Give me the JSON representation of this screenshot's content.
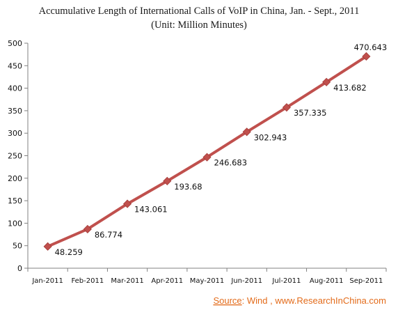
{
  "chart_data": {
    "type": "line",
    "title": "Accumulative Length of International Calls of VoIP in China, Jan. - Sept., 2011",
    "subtitle": "(Unit: Million Minutes)",
    "categories": [
      "Jan-2011",
      "Feb-2011",
      "Mar-2011",
      "Apr-2011",
      "May-2011",
      "Jun-2011",
      "Jul-2011",
      "Aug-2011",
      "Sep-2011"
    ],
    "series": [
      {
        "values": [
          48.259,
          86.774,
          143.061,
          193.68,
          246.683,
          302.943,
          357.335,
          413.682,
          470.643
        ],
        "labels": [
          "48.259",
          "86.774",
          "143.061",
          "193.68",
          "246.683",
          "302.943",
          "357.335",
          "413.682",
          "470.643"
        ],
        "color": "#c0504d"
      }
    ],
    "ylim": [
      0,
      500
    ],
    "yticks": [
      0,
      50,
      100,
      150,
      200,
      250,
      300,
      350,
      400,
      450,
      500
    ],
    "ytick_labels": [
      "0",
      "50",
      "100",
      "150",
      "200",
      "250",
      "300",
      "350",
      "400",
      "450",
      "500"
    ],
    "grid": false,
    "legend": "none",
    "xlabel": "",
    "ylabel": ""
  },
  "source": {
    "label": "Source",
    "text": ": Wind , www.ResearchInChina.com",
    "color": "#e36b1a"
  }
}
